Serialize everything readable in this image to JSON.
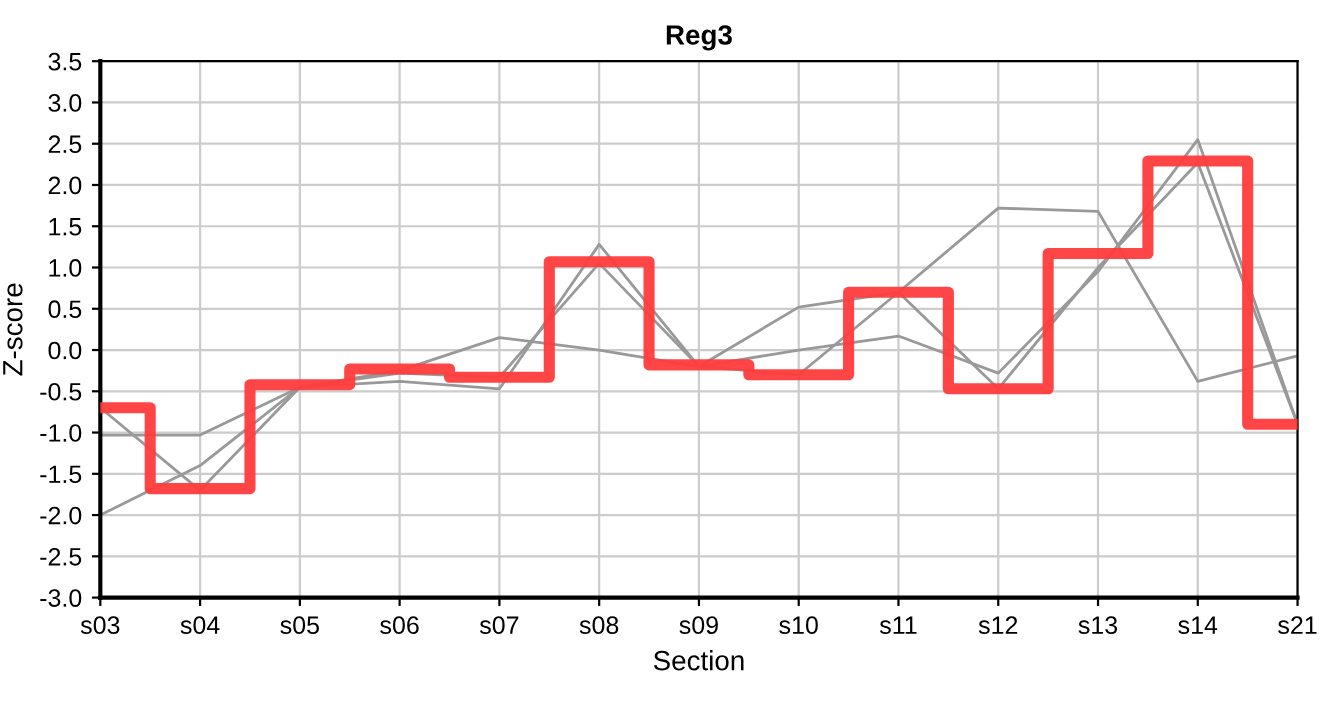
{
  "chart_data": {
    "type": "line",
    "title": "Reg3",
    "xlabel": "Section",
    "ylabel": "Z-score",
    "categories": [
      "s03",
      "s04",
      "s05",
      "s06",
      "s07",
      "s08",
      "s09",
      "s10",
      "s11",
      "s12",
      "s13",
      "s14",
      "s21"
    ],
    "series": [
      {
        "color": "#999999",
        "values": [
          -1.03,
          -1.03,
          -0.45,
          -0.25,
          0.15,
          0.0,
          -0.2,
          0.52,
          0.7,
          1.72,
          1.68,
          -0.38,
          -0.07
        ]
      },
      {
        "color": "#999999",
        "values": [
          -0.7,
          -1.7,
          -0.45,
          -0.28,
          -0.33,
          1.05,
          -0.2,
          -0.3,
          0.7,
          -0.47,
          1.0,
          2.27,
          -0.9
        ]
      },
      {
        "color": "#999999",
        "values": [
          -2.0,
          -1.4,
          -0.45,
          -0.38,
          -0.47,
          1.28,
          -0.2,
          0.0,
          0.17,
          -0.28,
          0.95,
          2.55,
          -0.9
        ]
      },
      {
        "type": "step",
        "color": "#ff3b3b",
        "values": [
          -0.7,
          -1.68,
          -0.42,
          -0.23,
          -0.33,
          1.07,
          -0.18,
          -0.3,
          0.7,
          -0.47,
          1.17,
          2.29,
          -0.9
        ]
      }
    ],
    "ylim": [
      -3.0,
      3.5
    ],
    "yticks": [
      {
        "value": -3.0,
        "label": "-3.0"
      },
      {
        "value": -2.5,
        "label": "-2.5"
      },
      {
        "value": -2.0,
        "label": "-2.0"
      },
      {
        "value": -1.5,
        "label": "-1.5"
      },
      {
        "value": -1.0,
        "label": "-1.0"
      },
      {
        "value": -0.5,
        "label": "-0.5"
      },
      {
        "value": 0.0,
        "label": "0.0"
      },
      {
        "value": 0.5,
        "label": "0.5"
      },
      {
        "value": 1.0,
        "label": "1.0"
      },
      {
        "value": 1.5,
        "label": "1.5"
      },
      {
        "value": 2.0,
        "label": "2.0"
      },
      {
        "value": 2.5,
        "label": "2.5"
      },
      {
        "value": 3.0,
        "label": "3.0"
      },
      {
        "value": 3.5,
        "label": "3.5"
      }
    ],
    "grid": true
  }
}
